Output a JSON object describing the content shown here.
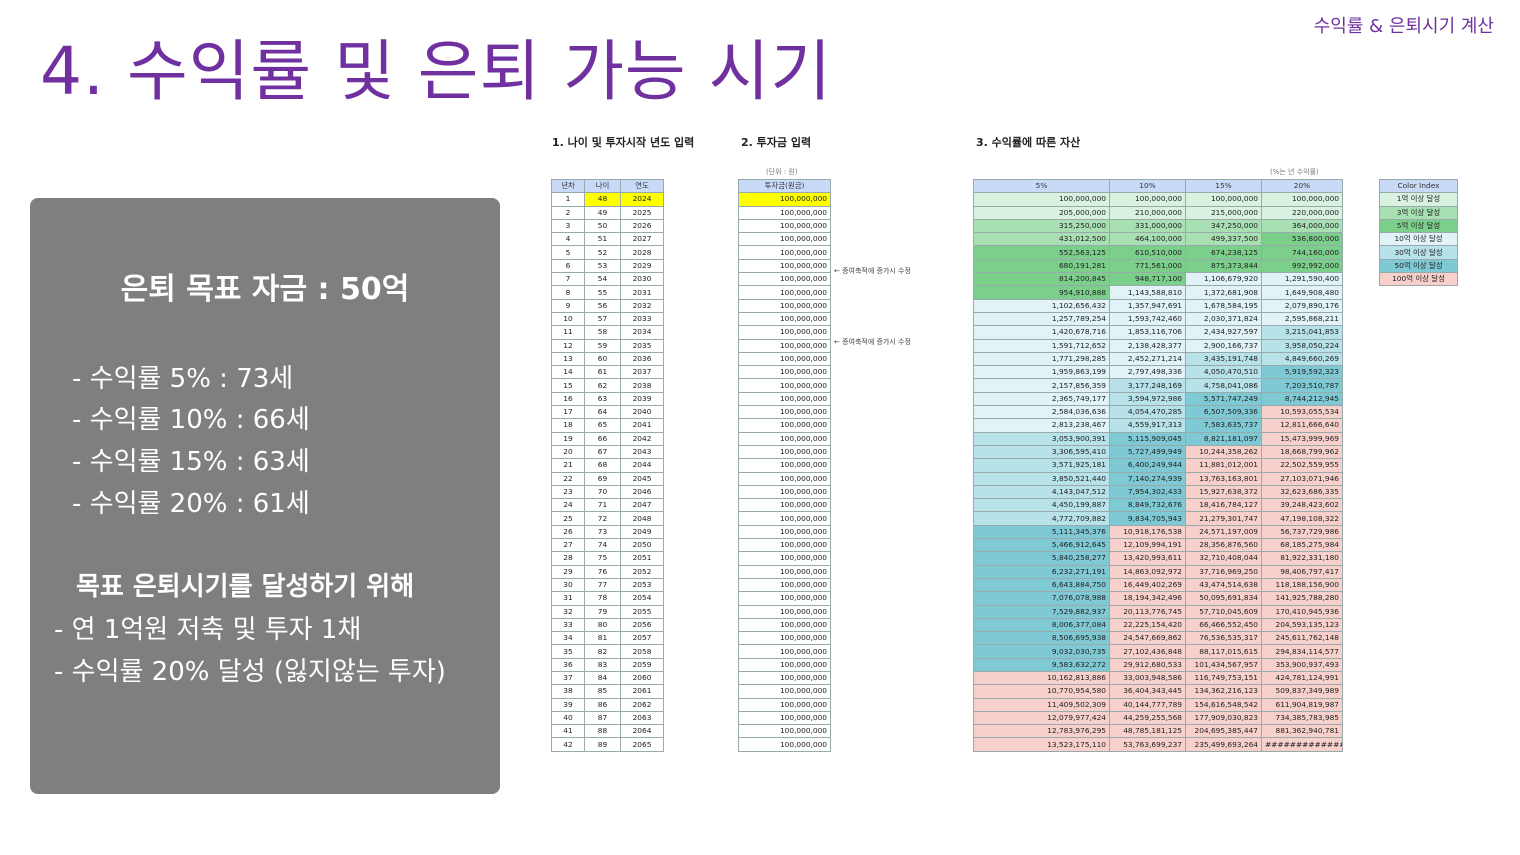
{
  "header": {
    "tag": "수익률 & 은퇴시기 계산",
    "title": "4. 수익률 및 은퇴 가능 시기"
  },
  "panel": {
    "goal": "은퇴 목표 자금 : 50억",
    "rates": [
      "- 수익률    5% : 73세",
      "- 수익률 10% : 66세",
      "- 수익률 15% : 63세",
      "- 수익률 20% : 61세"
    ],
    "subtitle": "목표 은퇴시기를 달성하기 위해",
    "actions": [
      "- 연 1억원 저축 및 투자 1채",
      "- 수익률 20% 달성 (잃지않는 투자)"
    ]
  },
  "sheet": {
    "section1": "1. 나이 및 투자시작 년도 입력",
    "section2": "2. 투자금 입력",
    "section3": "3. 수익률에 따른 자산",
    "unit2": "(단위 : 원)",
    "unit3": "(%는 년 수익률)",
    "headers1": [
      "년차",
      "나이",
      "연도"
    ],
    "header2": "투자금(원금)",
    "headers3": [
      "5%",
      "10%",
      "15%",
      "20%"
    ],
    "colorIndexHeader": "Color Index",
    "colorIndex": [
      {
        "label": "1억 이상 달성",
        "color": "#d9f2e0"
      },
      {
        "label": "3억 이상 달성",
        "color": "#a8dfb3"
      },
      {
        "label": "5억 이상 달성",
        "color": "#7ccf8b"
      },
      {
        "label": "10억 이상 달성",
        "color": "#e1f3f6"
      },
      {
        "label": "30억 이상 달성",
        "color": "#b7e2ea"
      },
      {
        "label": "50억 이상 달성",
        "color": "#7fc9d5"
      },
      {
        "label": "100억 이상 달성",
        "color": "#f8d0cb"
      }
    ],
    "notes": [
      {
        "row": 6,
        "text": "← 증여축적에 증가시 수정"
      },
      {
        "row": 11,
        "text": "← 증여축적에 증가시 수정"
      }
    ],
    "rows": [
      [
        "1",
        "48",
        "2024",
        "100,000,000",
        "100,000,000",
        "100,000,000",
        "100,000,000",
        "100,000,000"
      ],
      [
        "2",
        "49",
        "2025",
        "100,000,000",
        "205,000,000",
        "210,000,000",
        "215,000,000",
        "220,000,000"
      ],
      [
        "3",
        "50",
        "2026",
        "100,000,000",
        "315,250,000",
        "331,000,000",
        "347,250,000",
        "364,000,000"
      ],
      [
        "4",
        "51",
        "2027",
        "100,000,000",
        "431,012,500",
        "464,100,000",
        "499,337,500",
        "536,800,000"
      ],
      [
        "5",
        "52",
        "2028",
        "100,000,000",
        "552,563,125",
        "610,510,000",
        "674,238,125",
        "744,160,000"
      ],
      [
        "6",
        "53",
        "2029",
        "100,000,000",
        "680,191,281",
        "771,561,000",
        "875,373,844",
        "992,992,000"
      ],
      [
        "7",
        "54",
        "2030",
        "100,000,000",
        "814,200,845",
        "948,717,100",
        "1,106,679,920",
        "1,291,590,400"
      ],
      [
        "8",
        "55",
        "2031",
        "100,000,000",
        "954,910,888",
        "1,143,588,810",
        "1,372,681,908",
        "1,649,908,480"
      ],
      [
        "9",
        "56",
        "2032",
        "100,000,000",
        "1,102,656,432",
        "1,357,947,691",
        "1,678,584,195",
        "2,079,890,176"
      ],
      [
        "10",
        "57",
        "2033",
        "100,000,000",
        "1,257,789,254",
        "1,593,742,460",
        "2,030,371,824",
        "2,595,868,211"
      ],
      [
        "11",
        "58",
        "2034",
        "100,000,000",
        "1,420,678,716",
        "1,853,116,706",
        "2,434,927,597",
        "3,215,041,853"
      ],
      [
        "12",
        "59",
        "2035",
        "100,000,000",
        "1,591,712,652",
        "2,138,428,377",
        "2,900,166,737",
        "3,958,050,224"
      ],
      [
        "13",
        "60",
        "2036",
        "100,000,000",
        "1,771,298,285",
        "2,452,271,214",
        "3,435,191,748",
        "4,849,660,269"
      ],
      [
        "14",
        "61",
        "2037",
        "100,000,000",
        "1,959,863,199",
        "2,797,498,336",
        "4,050,470,510",
        "5,919,592,323"
      ],
      [
        "15",
        "62",
        "2038",
        "100,000,000",
        "2,157,856,359",
        "3,177,248,169",
        "4,758,041,086",
        "7,203,510,787"
      ],
      [
        "16",
        "63",
        "2039",
        "100,000,000",
        "2,365,749,177",
        "3,594,972,986",
        "5,571,747,249",
        "8,744,212,945"
      ],
      [
        "17",
        "64",
        "2040",
        "100,000,000",
        "2,584,036,636",
        "4,054,470,285",
        "6,507,509,336",
        "10,593,055,534"
      ],
      [
        "18",
        "65",
        "2041",
        "100,000,000",
        "2,813,238,467",
        "4,559,917,313",
        "7,583,635,737",
        "12,811,666,640"
      ],
      [
        "19",
        "66",
        "2042",
        "100,000,000",
        "3,053,900,391",
        "5,115,909,045",
        "8,821,181,097",
        "15,473,999,969"
      ],
      [
        "20",
        "67",
        "2043",
        "100,000,000",
        "3,306,595,410",
        "5,727,499,949",
        "10,244,358,262",
        "18,668,799,962"
      ],
      [
        "21",
        "68",
        "2044",
        "100,000,000",
        "3,571,925,181",
        "6,400,249,944",
        "11,881,012,001",
        "22,502,559,955"
      ],
      [
        "22",
        "69",
        "2045",
        "100,000,000",
        "3,850,521,440",
        "7,140,274,939",
        "13,763,163,801",
        "27,103,071,946"
      ],
      [
        "23",
        "70",
        "2046",
        "100,000,000",
        "4,143,047,512",
        "7,954,302,433",
        "15,927,638,372",
        "32,623,686,335"
      ],
      [
        "24",
        "71",
        "2047",
        "100,000,000",
        "4,450,199,887",
        "8,849,732,676",
        "18,416,784,127",
        "39,248,423,602"
      ],
      [
        "25",
        "72",
        "2048",
        "100,000,000",
        "4,772,709,882",
        "9,834,705,943",
        "21,279,301,747",
        "47,198,108,322"
      ],
      [
        "26",
        "73",
        "2049",
        "100,000,000",
        "5,111,345,376",
        "10,918,176,538",
        "24,571,197,009",
        "56,737,729,986"
      ],
      [
        "27",
        "74",
        "2050",
        "100,000,000",
        "5,466,912,645",
        "12,109,994,191",
        "28,356,876,560",
        "68,185,275,984"
      ],
      [
        "28",
        "75",
        "2051",
        "100,000,000",
        "5,840,258,277",
        "13,420,993,611",
        "32,710,408,044",
        "81,922,331,180"
      ],
      [
        "29",
        "76",
        "2052",
        "100,000,000",
        "6,232,271,191",
        "14,863,092,972",
        "37,716,969,250",
        "98,406,797,417"
      ],
      [
        "30",
        "77",
        "2053",
        "100,000,000",
        "6,643,884,750",
        "16,449,402,269",
        "43,474,514,638",
        "118,188,156,900"
      ],
      [
        "31",
        "78",
        "2054",
        "100,000,000",
        "7,076,078,988",
        "18,194,342,496",
        "50,095,691,834",
        "141,925,788,280"
      ],
      [
        "32",
        "79",
        "2055",
        "100,000,000",
        "7,529,882,937",
        "20,113,776,745",
        "57,710,045,609",
        "170,410,945,936"
      ],
      [
        "33",
        "80",
        "2056",
        "100,000,000",
        "8,006,377,084",
        "22,225,154,420",
        "66,466,552,450",
        "204,593,135,123"
      ],
      [
        "34",
        "81",
        "2057",
        "100,000,000",
        "8,506,695,938",
        "24,547,669,862",
        "76,536,535,317",
        "245,611,762,148"
      ],
      [
        "35",
        "82",
        "2058",
        "100,000,000",
        "9,032,030,735",
        "27,102,436,848",
        "88,117,015,615",
        "294,834,114,577"
      ],
      [
        "36",
        "83",
        "2059",
        "100,000,000",
        "9,583,632,272",
        "29,912,680,533",
        "101,434,567,957",
        "353,900,937,493"
      ],
      [
        "37",
        "84",
        "2060",
        "100,000,000",
        "10,162,813,886",
        "33,003,948,586",
        "116,749,753,151",
        "424,781,124,991"
      ],
      [
        "38",
        "85",
        "2061",
        "100,000,000",
        "10,770,954,580",
        "36,404,343,445",
        "134,362,216,123",
        "509,837,349,989"
      ],
      [
        "39",
        "86",
        "2062",
        "100,000,000",
        "11,409,502,309",
        "40,144,777,789",
        "154,616,548,542",
        "611,904,819,987"
      ],
      [
        "40",
        "87",
        "2063",
        "100,000,000",
        "12,079,977,424",
        "44,259,255,568",
        "177,909,030,823",
        "734,385,783,985"
      ],
      [
        "41",
        "88",
        "2064",
        "100,000,000",
        "12,783,976,295",
        "48,785,181,125",
        "204,695,385,447",
        "881,362,940,781"
      ],
      [
        "42",
        "89",
        "2065",
        "100,000,000",
        "13,523,175,110",
        "53,763,699,237",
        "235,499,693,264",
        "##############"
      ]
    ]
  }
}
